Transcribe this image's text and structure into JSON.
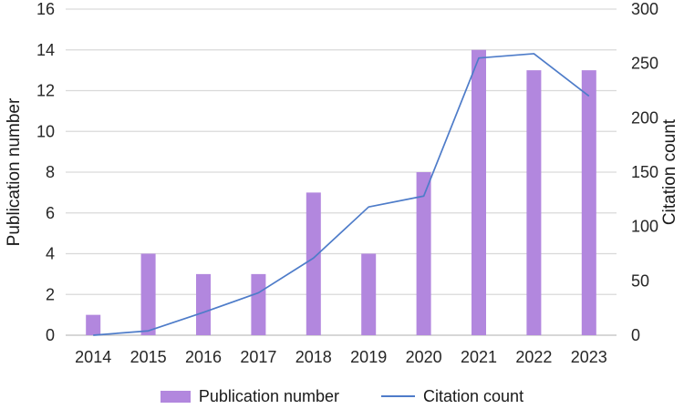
{
  "chart_data": {
    "type": "combo",
    "title": "",
    "categories": [
      "2014",
      "2015",
      "2016",
      "2017",
      "2018",
      "2019",
      "2020",
      "2021",
      "2022",
      "2023"
    ],
    "series": [
      {
        "name": "Publication number",
        "type": "bar",
        "axis": "left",
        "values": [
          1,
          4,
          3,
          3,
          7,
          4,
          8,
          14,
          13,
          13
        ],
        "color": "#b287de"
      },
      {
        "name": "Citation count",
        "type": "line",
        "axis": "right",
        "values": [
          0,
          4,
          21,
          39,
          71,
          118,
          128,
          255,
          259,
          220
        ],
        "color": "#4e7cc9"
      }
    ],
    "xlabel": "",
    "ylabel_left": "Publication number",
    "ylabel_right": "Citation count",
    "ylim_left": [
      0,
      16
    ],
    "ylim_right": [
      0,
      300
    ],
    "yticks_left": [
      0,
      2,
      4,
      6,
      8,
      10,
      12,
      14,
      16
    ],
    "yticks_right": [
      0,
      50,
      100,
      150,
      200,
      250,
      300
    ],
    "grid": true,
    "legend_position": "bottom"
  },
  "colors": {
    "bar": "#b287de",
    "line": "#4e7cc9",
    "grid": "#d9d9d9",
    "axis_line": "#bfbfbf",
    "text": "#262626"
  }
}
